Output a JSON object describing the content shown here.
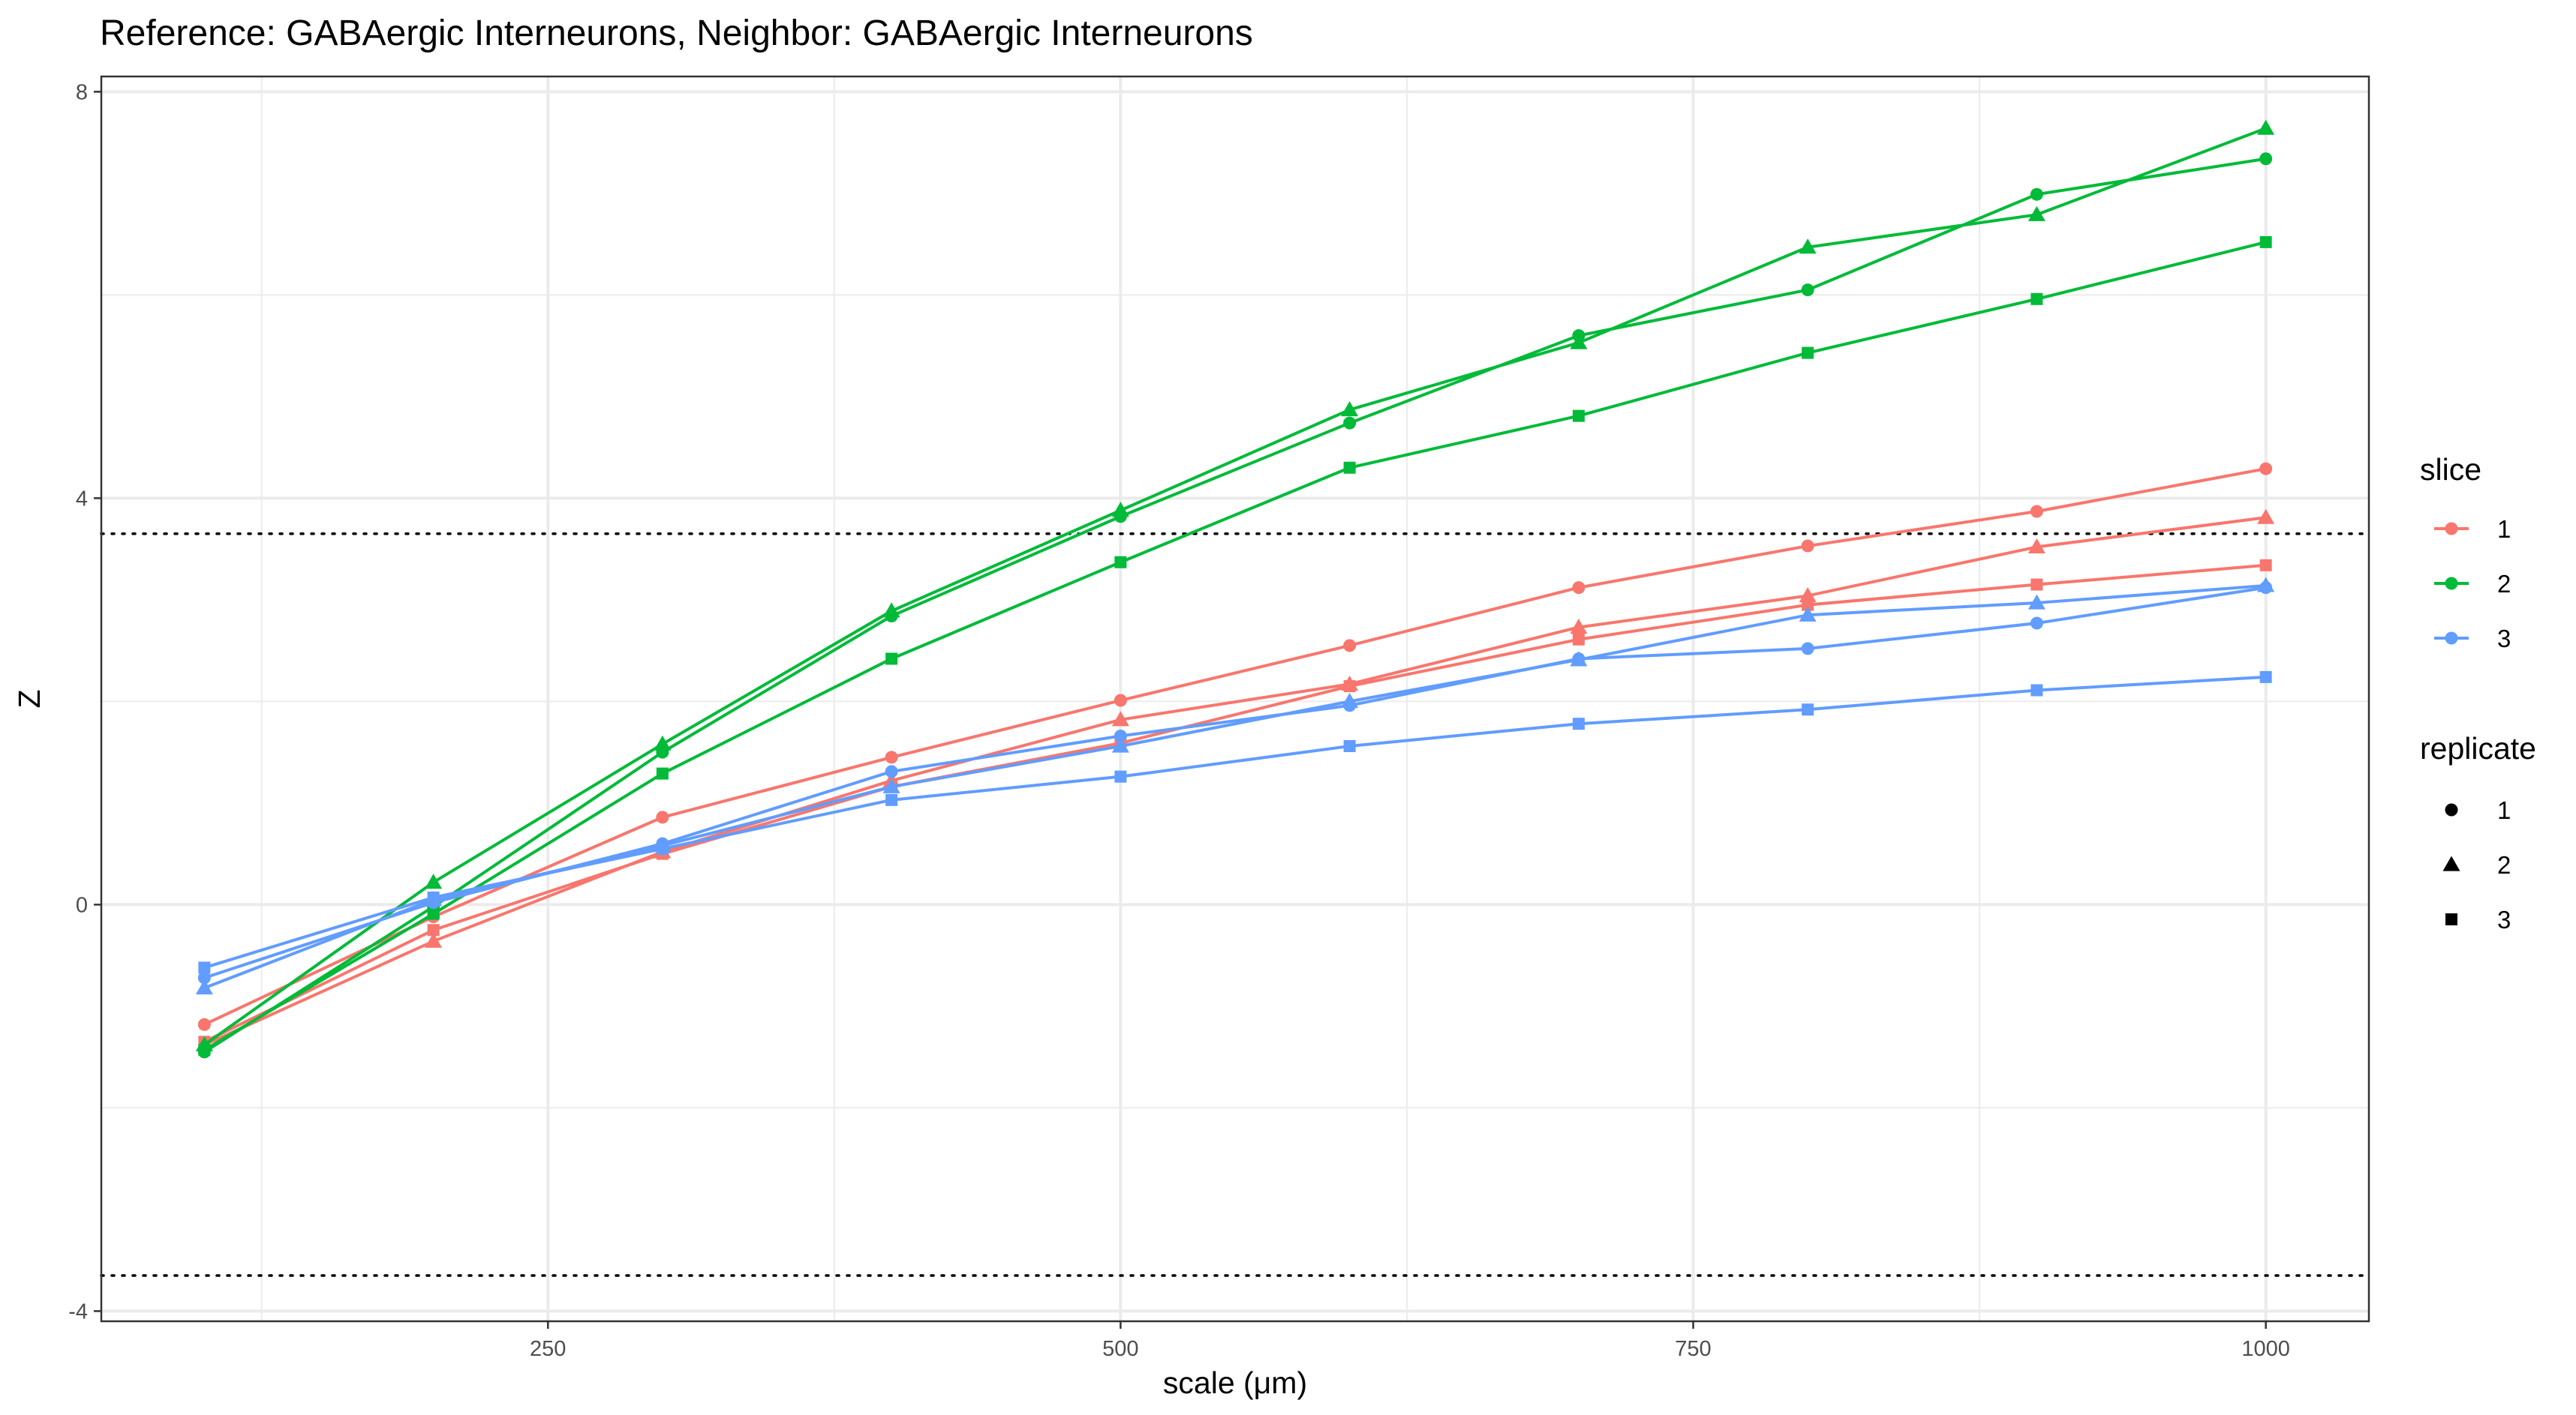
{
  "chart_data": {
    "type": "line",
    "title": "Reference: GABAergic Interneurons, Neighbor: GABAergic Interneurons",
    "xlabel": "scale (μm)",
    "ylabel": "Z",
    "xlim": [
      55,
      1045
    ],
    "ylim": [
      -4.1,
      8.15
    ],
    "x_ticks": [
      250,
      500,
      750,
      1000
    ],
    "y_ticks": [
      -4,
      0,
      4,
      8
    ],
    "x_tick_labels": [
      "250",
      "500",
      "750",
      "1000"
    ],
    "y_tick_labels": [
      "-4",
      "0",
      "4",
      "8"
    ],
    "reference_lines": [
      3.65,
      -3.65
    ],
    "grid": true,
    "x": [
      100,
      200,
      300,
      400,
      500,
      600,
      700,
      800,
      900,
      1000
    ],
    "legend": {
      "position": "right",
      "slice_title": "slice",
      "slice_entries": [
        {
          "label": "1",
          "color": "#F8766D"
        },
        {
          "label": "2",
          "color": "#00BA38"
        },
        {
          "label": "3",
          "color": "#619CFF"
        }
      ],
      "replicate_title": "replicate",
      "replicate_entries": [
        {
          "label": "1",
          "shape": "circle"
        },
        {
          "label": "2",
          "shape": "triangle"
        },
        {
          "label": "3",
          "shape": "square"
        }
      ]
    },
    "series": [
      {
        "slice": "1",
        "replicate": "1",
        "values": [
          -1.18,
          -0.12,
          0.86,
          1.45,
          2.01,
          2.55,
          3.12,
          3.53,
          3.87,
          4.29
        ]
      },
      {
        "slice": "1",
        "replicate": "2",
        "values": [
          -1.38,
          -0.36,
          0.52,
          1.22,
          1.82,
          2.17,
          2.73,
          3.04,
          3.52,
          3.81
        ]
      },
      {
        "slice": "1",
        "replicate": "3",
        "values": [
          -1.35,
          -0.25,
          0.5,
          1.16,
          1.59,
          2.15,
          2.61,
          2.95,
          3.15,
          3.34
        ]
      },
      {
        "slice": "2",
        "replicate": "1",
        "values": [
          -1.45,
          -0.02,
          1.5,
          2.84,
          3.82,
          4.74,
          5.6,
          6.05,
          6.99,
          7.34
        ]
      },
      {
        "slice": "2",
        "replicate": "2",
        "values": [
          -1.38,
          0.22,
          1.58,
          2.89,
          3.88,
          4.87,
          5.53,
          6.47,
          6.79,
          7.64
        ]
      },
      {
        "slice": "2",
        "replicate": "3",
        "values": [
          -1.43,
          -0.09,
          1.29,
          2.42,
          3.37,
          4.3,
          4.81,
          5.43,
          5.96,
          6.52
        ]
      },
      {
        "slice": "3",
        "replicate": "1",
        "values": [
          -0.72,
          0.02,
          0.6,
          1.31,
          1.66,
          1.96,
          2.42,
          2.52,
          2.77,
          3.12
        ]
      },
      {
        "slice": "3",
        "replicate": "2",
        "values": [
          -0.82,
          0.05,
          0.58,
          1.16,
          1.56,
          2.0,
          2.41,
          2.85,
          2.97,
          3.14
        ]
      },
      {
        "slice": "3",
        "replicate": "3",
        "values": [
          -0.62,
          0.07,
          0.55,
          1.03,
          1.26,
          1.56,
          1.78,
          1.92,
          2.11,
          2.24
        ]
      }
    ]
  }
}
